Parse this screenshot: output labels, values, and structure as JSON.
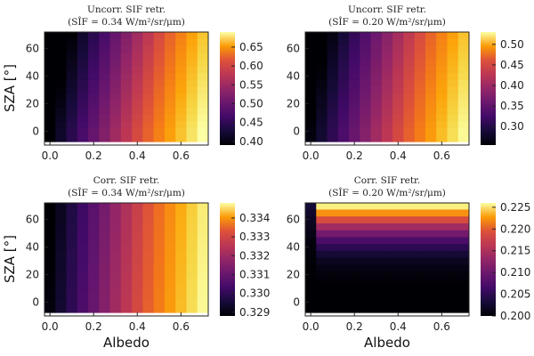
{
  "chart_data": [
    {
      "type": "heatmap",
      "title": "Uncorr. SIF retr.",
      "subtitle": "(SÎF = 0.34 W/m²/sr/μm)",
      "xlabel": "",
      "ylabel": "SZA [°]",
      "xlim": [
        -0.025,
        0.725
      ],
      "ylim": [
        -10,
        72
      ],
      "xticks": [
        "0.0",
        "0.2",
        "0.4",
        "0.6"
      ],
      "yticks": [
        "0",
        "20",
        "40",
        "60"
      ],
      "colorbar": {
        "range": [
          0.39,
          0.69
        ],
        "ticks": [
          "0.40",
          "0.45",
          "0.50",
          "0.55",
          "0.60",
          "0.65"
        ]
      },
      "x": [
        0.0,
        0.05,
        0.1,
        0.15,
        0.2,
        0.25,
        0.3,
        0.35,
        0.4,
        0.45,
        0.5,
        0.55,
        0.6,
        0.65,
        0.7
      ],
      "y": [
        -5,
        0,
        5,
        10,
        15,
        20,
        25,
        30,
        35,
        40,
        45,
        50,
        55,
        60,
        65,
        70
      ],
      "model": {
        "kind": "linx",
        "base": 0.39,
        "slope": 0.43,
        "sza": -0.0006
      }
    },
    {
      "type": "heatmap",
      "title": "Uncorr. SIF retr.",
      "subtitle": "(SÎF = 0.20 W/m²/sr/μm)",
      "xlabel": "",
      "ylabel": "",
      "xlim": [
        -0.025,
        0.725
      ],
      "ylim": [
        -10,
        72
      ],
      "xticks": [
        "0.0",
        "0.2",
        "0.4",
        "0.6"
      ],
      "yticks": [
        "0",
        "20",
        "40",
        "60"
      ],
      "colorbar": {
        "range": [
          0.255,
          0.53
        ],
        "ticks": [
          "0.30",
          "0.35",
          "0.40",
          "0.45",
          "0.50"
        ]
      },
      "x": [
        0.0,
        0.05,
        0.1,
        0.15,
        0.2,
        0.25,
        0.3,
        0.35,
        0.4,
        0.45,
        0.5,
        0.55,
        0.6,
        0.65,
        0.7
      ],
      "y": [
        -5,
        0,
        5,
        10,
        15,
        20,
        25,
        30,
        35,
        40,
        45,
        50,
        55,
        60,
        65,
        70
      ],
      "model": {
        "kind": "linx",
        "base": 0.26,
        "slope": 0.38,
        "sza": -0.0005
      }
    },
    {
      "type": "heatmap",
      "title": "Corr. SIF retr.",
      "subtitle": "(SÎF = 0.34 W/m²/sr/μm)",
      "xlabel": "Albedo",
      "ylabel": "SZA [°]",
      "xlim": [
        -0.025,
        0.725
      ],
      "ylim": [
        -10,
        72
      ],
      "xticks": [
        "0.0",
        "0.2",
        "0.4",
        "0.6"
      ],
      "yticks": [
        "0",
        "20",
        "40",
        "60"
      ],
      "colorbar": {
        "range": [
          0.3288,
          0.3348
        ],
        "ticks": [
          "0.329",
          "0.330",
          "0.331",
          "0.332",
          "0.333",
          "0.334"
        ]
      },
      "x": [
        0.0,
        0.05,
        0.1,
        0.15,
        0.2,
        0.25,
        0.3,
        0.35,
        0.4,
        0.45,
        0.5,
        0.55,
        0.6,
        0.65,
        0.7
      ],
      "y": [
        -5,
        0,
        5,
        10,
        15,
        20,
        25,
        30,
        35,
        40,
        45,
        50,
        55,
        60,
        65,
        70
      ],
      "model": {
        "kind": "linx",
        "base": 0.3289,
        "slope": 0.0083,
        "sza": -3e-06
      }
    },
    {
      "type": "heatmap",
      "title": "Corr. SIF retr.",
      "subtitle": "(SÎF = 0.20 W/m²/sr/μm)",
      "xlabel": "Albedo",
      "ylabel": "",
      "xlim": [
        -0.025,
        0.725
      ],
      "ylim": [
        -10,
        72
      ],
      "xticks": [
        "0.0",
        "0.2",
        "0.4",
        "0.6"
      ],
      "yticks": [
        "0",
        "20",
        "40",
        "60"
      ],
      "colorbar": {
        "range": [
          0.2,
          0.226
        ],
        "ticks": [
          "0.200",
          "0.205",
          "0.210",
          "0.215",
          "0.220",
          "0.225"
        ]
      },
      "x": [
        0.0,
        0.05,
        0.1,
        0.15,
        0.2,
        0.25,
        0.3,
        0.35,
        0.4,
        0.45,
        0.5,
        0.55,
        0.6,
        0.65,
        0.7
      ],
      "y": [
        -5,
        0,
        5,
        10,
        15,
        20,
        25,
        30,
        35,
        40,
        45,
        50,
        55,
        60,
        65,
        70
      ],
      "model": {
        "kind": "szay",
        "base": 0.2,
        "amp": 0.025,
        "pow": 3
      }
    }
  ]
}
